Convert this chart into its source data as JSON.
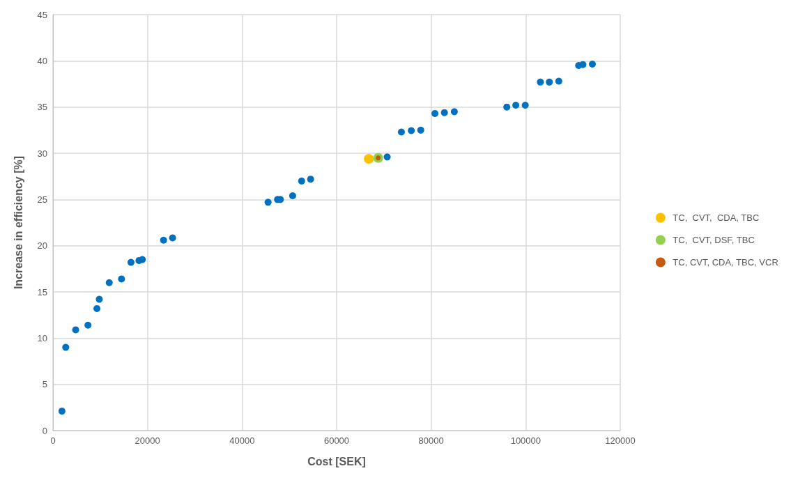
{
  "chart_data": {
    "type": "scatter",
    "xlabel": "Cost [SEK]",
    "ylabel": "Increase in efficiency [%]",
    "xlim": [
      0,
      120000
    ],
    "xticks": [
      0,
      20000,
      40000,
      60000,
      80000,
      100000,
      120000
    ],
    "ylim": [
      0,
      45
    ],
    "yticks": [
      0,
      5,
      10,
      15,
      20,
      25,
      30,
      35,
      40,
      45
    ],
    "grid": true,
    "legend": "right",
    "marker": "circle",
    "series": [
      {
        "color": "#0070c0",
        "x": [
          1900,
          2700,
          4800,
          7400,
          9300,
          9800,
          11900,
          14500,
          16500,
          18200,
          18900,
          23400,
          25300,
          45500,
          47500,
          48100,
          50700,
          52600,
          54500,
          70700,
          73700,
          75800,
          77800,
          80800,
          82800,
          84900,
          96000,
          97900,
          99900,
          103100,
          105000,
          107000,
          111200,
          112100,
          114100
        ],
        "values": [
          2.1,
          9.0,
          10.9,
          11.4,
          13.2,
          14.2,
          16.0,
          16.4,
          18.2,
          18.4,
          18.5,
          20.6,
          20.85,
          24.7,
          25.0,
          25.0,
          25.4,
          27.0,
          27.2,
          29.6,
          32.3,
          32.45,
          32.5,
          34.3,
          34.4,
          34.5,
          35.0,
          35.2,
          35.2,
          37.7,
          37.7,
          37.8,
          39.5,
          39.6,
          39.65
        ]
      },
      {
        "name": "TC,  CVT,  CDA, TBC",
        "color": "#ffc000",
        "x": [
          66800
        ],
        "values": [
          29.4
        ]
      },
      {
        "name": "TC,  CVT, DSF, TBC",
        "color": "#92d050",
        "x": [
          68800
        ],
        "values": [
          29.5
        ]
      },
      {
        "name": "TC, CVT, CDA, TBC, VCR",
        "color": "#c55a11",
        "x": [
          68800
        ],
        "values": [
          29.5
        ]
      }
    ]
  }
}
